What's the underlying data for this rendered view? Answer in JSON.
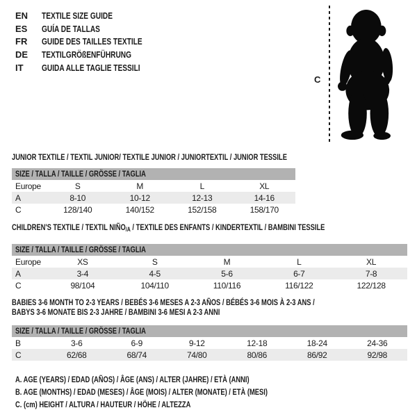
{
  "colors": {
    "background": "#ffffff",
    "text": "#1a1a1a",
    "table_header_bar": "#b2b2b2",
    "shaded_row": "#ebebeb",
    "silhouette": "#0a0a0a"
  },
  "language_guide": {
    "items": [
      {
        "code": "EN",
        "label": "TEXTILE SIZE GUIDE"
      },
      {
        "code": "ES",
        "label": "GUÍA DE TALLAS"
      },
      {
        "code": "FR",
        "label": "GUIDE DES TAILLES TEXTILE"
      },
      {
        "code": "DE",
        "label": "TEXTILGRÖßENFÜHRUNG"
      },
      {
        "code": "IT",
        "label": "GUIDA ALLE TAGLIE TESSILI"
      }
    ]
  },
  "figure": {
    "measurement_label": "C",
    "silhouette_alt": "standing toddler silhouette with dashed height line"
  },
  "tables": [
    {
      "title": "JUNIOR TEXTILE / TEXTIL JUNIOR/ TEXTILE JUNIOR / JUNIORTEXTIL / JUNIOR TESSILE",
      "size_header": "SIZE / TALLA / TAILLE / GRÖSSE / TAGLIA",
      "rows": [
        {
          "label": "Europe",
          "cells": [
            "S",
            "M",
            "L",
            "XL"
          ],
          "shaded": false
        },
        {
          "label": "A",
          "cells": [
            "8-10",
            "10-12",
            "12-13",
            "14-16"
          ],
          "shaded": true
        },
        {
          "label": "C",
          "cells": [
            "128/140",
            "140/152",
            "152/158",
            "158/170"
          ],
          "shaded": false
        }
      ]
    },
    {
      "title_prefix": "CHILDREN'S TEXTILE / TEXTIL NIÑO",
      "title_sub": "/A",
      "title_suffix": " / TEXTILE DES ENFANTS / KINDERTEXTIL / BAMBINI TESSILE",
      "size_header": "SIZE / TALLA / TAILLE / GRÖSSE / TAGLIA",
      "rows": [
        {
          "label": "Europe",
          "cells": [
            "XS",
            "S",
            "M",
            "L",
            "XL"
          ],
          "shaded": false
        },
        {
          "label": "A",
          "cells": [
            "3-4",
            "4-5",
            "5-6",
            "6-7",
            "7-8"
          ],
          "shaded": true
        },
        {
          "label": "C",
          "cells": [
            "98/104",
            "104/110",
            "110/116",
            "116/122",
            "122/128"
          ],
          "shaded": false
        }
      ]
    },
    {
      "title_line1": "BABIES 3-6 MONTH TO 2-3 YEARS / BEBÉS 3-6 MESES A 2-3 AÑOS / BÉBÉS 3-6 MOIS À 2-3 ANS /",
      "title_line2": "BABYS 3-6 MONATE BIS 2-3 JAHRE / BAMBINI 3-6 MESI A 2-3 ANNI",
      "size_header": "SIZE / TALLA / TAILLE / GRÖSSE / TAGLIA",
      "rows": [
        {
          "label": "B",
          "cells": [
            "3-6",
            "6-9",
            "9-12",
            "12-18",
            "18-24",
            "24-36"
          ],
          "shaded": false
        },
        {
          "label": "C",
          "cells": [
            "62/68",
            "68/74",
            "74/80",
            "80/86",
            "86/92",
            "92/98"
          ],
          "shaded": true
        }
      ]
    }
  ],
  "footnotes": [
    "A. AGE (YEARS) / EDAD (AÑOS) / ÂGE (ANS) / ALTER (JAHRE) / ETÀ (ANNI)",
    "B. AGE (MONTHS) / EDAD (MESES) / ÂGE (MOIS) / ALTER (MONATE) / ETÀ (MESI)",
    "C. (cm) HEIGHT / ALTURA / HAUTEUR / HÖHE / ALTEZZA"
  ]
}
